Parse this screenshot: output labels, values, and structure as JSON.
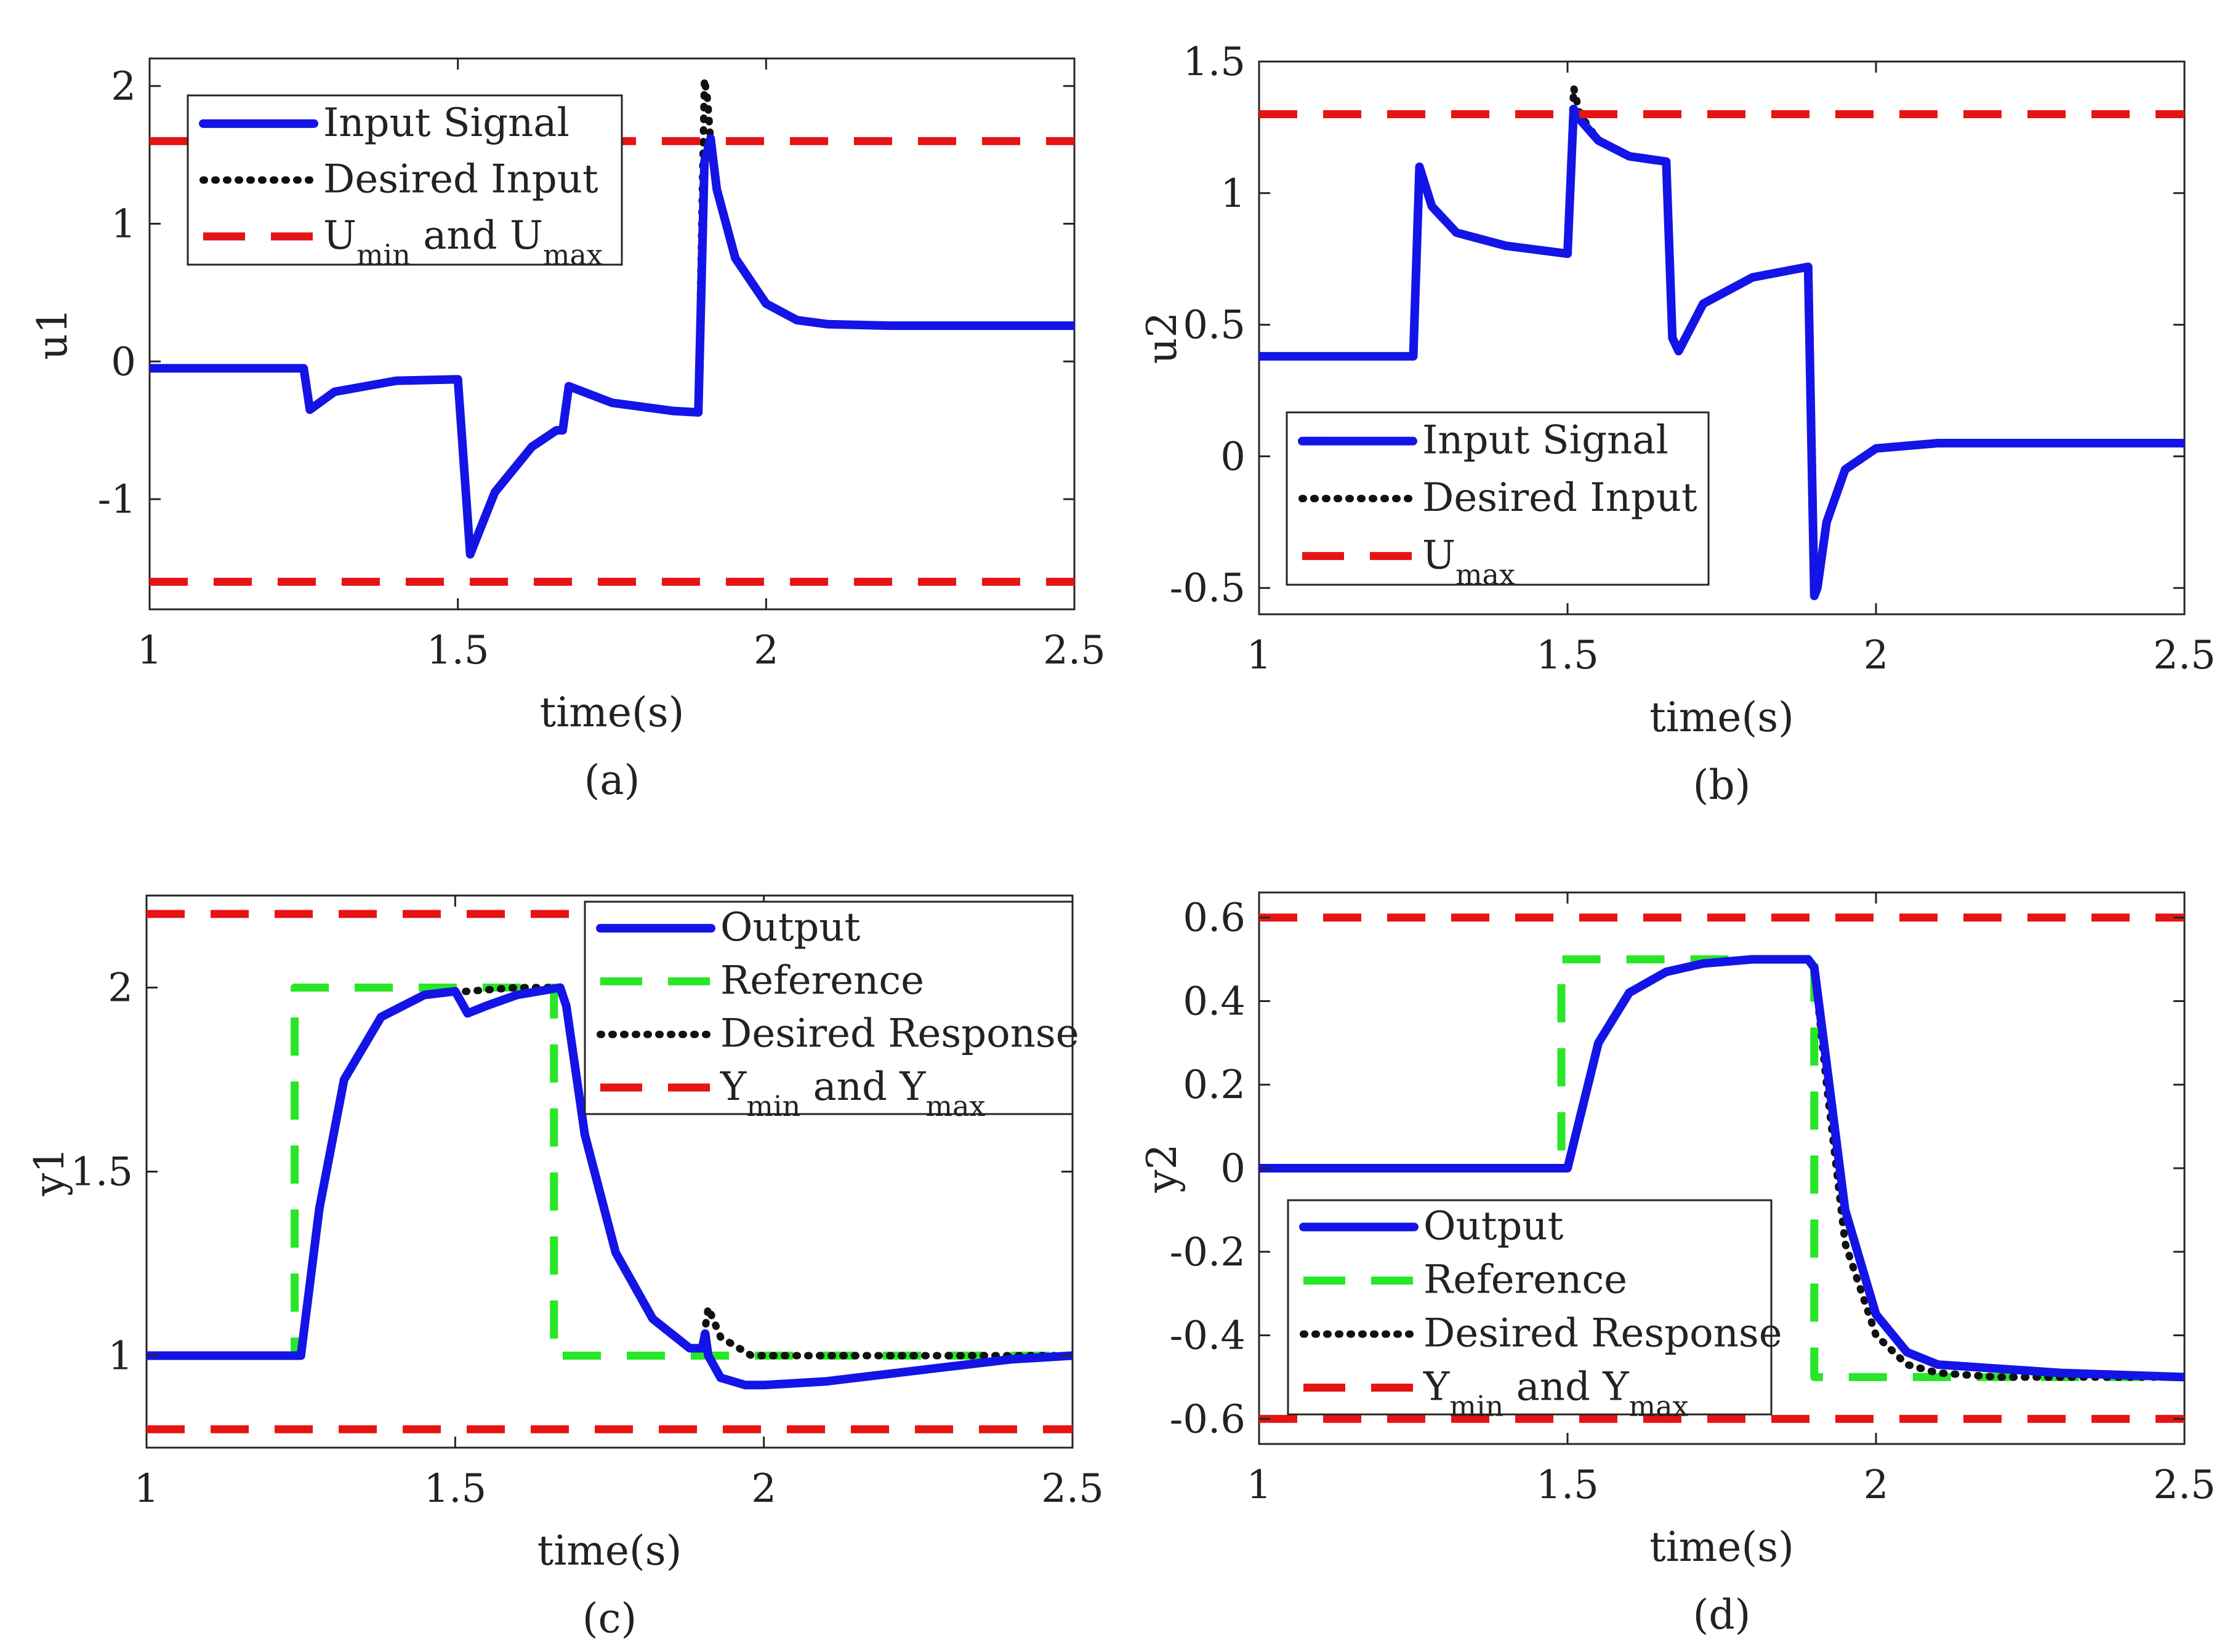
{
  "colors": {
    "input": "#1414e6",
    "desired": "#111111",
    "limit": "#e61414",
    "reference": "#28e628"
  },
  "chart_data": [
    {
      "id": "a",
      "type": "line",
      "caption": "(a)",
      "xlabel": "time(s)",
      "ylabel": "u1",
      "xlim": [
        1,
        2.5
      ],
      "ylim": [
        -1.8,
        2.2
      ],
      "xticks": [
        "1",
        "1.5",
        "2",
        "2.5"
      ],
      "yticks": [
        "-1",
        "0",
        "1",
        "2"
      ],
      "legend": {
        "position": "top-left",
        "entries": [
          {
            "name": "Input Signal",
            "style": "solid",
            "color": "input"
          },
          {
            "name": "Desired Input",
            "style": "dotted",
            "color": "desired"
          },
          {
            "name": "U",
            "sub": "min",
            "mid": " and U",
            "sub2": "max",
            "style": "dashed",
            "color": "limit"
          }
        ]
      },
      "series": [
        {
          "name": "Desired Input",
          "style": "dotted",
          "color": "desired",
          "x": [
            1,
            1.25,
            1.25,
            1.26,
            1.3,
            1.4,
            1.5,
            1.5,
            1.52,
            1.56,
            1.62,
            1.66,
            1.67,
            1.68,
            1.75,
            1.85,
            1.89,
            1.9,
            1.905,
            1.91,
            1.92,
            1.95,
            2.0,
            2.05,
            2.1,
            2.2,
            2.5
          ],
          "y": [
            -0.05,
            -0.05,
            -0.05,
            -0.35,
            -0.22,
            -0.14,
            -0.13,
            -0.13,
            -1.4,
            -0.95,
            -0.62,
            -0.5,
            -0.5,
            -0.18,
            -0.3,
            -0.36,
            -0.37,
            2.05,
            1.9,
            1.6,
            1.25,
            0.75,
            0.42,
            0.3,
            0.27,
            0.26,
            0.26
          ]
        },
        {
          "name": "Input Signal",
          "style": "solid",
          "color": "input",
          "x": [
            1,
            1.25,
            1.25,
            1.26,
            1.3,
            1.4,
            1.5,
            1.5,
            1.52,
            1.56,
            1.62,
            1.66,
            1.67,
            1.68,
            1.75,
            1.85,
            1.89,
            1.9,
            1.91,
            1.92,
            1.95,
            2.0,
            2.05,
            2.1,
            2.2,
            2.5
          ],
          "y": [
            -0.05,
            -0.05,
            -0.05,
            -0.35,
            -0.22,
            -0.14,
            -0.13,
            -0.13,
            -1.4,
            -0.95,
            -0.62,
            -0.5,
            -0.5,
            -0.18,
            -0.3,
            -0.36,
            -0.37,
            1.45,
            1.62,
            1.25,
            0.75,
            0.42,
            0.3,
            0.27,
            0.26,
            0.26
          ]
        },
        {
          "name": "U max",
          "style": "dashed",
          "color": "limit",
          "x": [
            1,
            2.5
          ],
          "y": [
            1.6,
            1.6
          ]
        },
        {
          "name": "U min",
          "style": "dashed",
          "color": "limit",
          "x": [
            1,
            2.5
          ],
          "y": [
            -1.6,
            -1.6
          ]
        }
      ]
    },
    {
      "id": "b",
      "type": "line",
      "caption": "(b)",
      "xlabel": "time(s)",
      "ylabel": "u2",
      "xlim": [
        1,
        2.5
      ],
      "ylim": [
        -0.6,
        1.5
      ],
      "xticks": [
        "1",
        "1.5",
        "2",
        "2.5"
      ],
      "yticks": [
        "-0.5",
        "0",
        "0.5",
        "1",
        "1.5"
      ],
      "legend": {
        "position": "bottom-left",
        "entries": [
          {
            "name": "Input Signal",
            "style": "solid",
            "color": "input"
          },
          {
            "name": "Desired Input",
            "style": "dotted",
            "color": "desired"
          },
          {
            "name": "U",
            "sub": "max",
            "style": "dashed",
            "color": "limit"
          }
        ]
      },
      "series": [
        {
          "name": "Desired Input",
          "style": "dotted",
          "color": "desired",
          "x": [
            1,
            1.25,
            1.26,
            1.28,
            1.32,
            1.4,
            1.5,
            1.5,
            1.51,
            1.52,
            1.55,
            1.6,
            1.66,
            1.67,
            1.68,
            1.72,
            1.8,
            1.89,
            1.9,
            1.905,
            1.92,
            1.95,
            2.0,
            2.1,
            2.5
          ],
          "y": [
            0.38,
            0.38,
            1.1,
            0.95,
            0.85,
            0.8,
            0.77,
            0.77,
            1.4,
            1.3,
            1.2,
            1.14,
            1.12,
            0.45,
            0.4,
            0.58,
            0.68,
            0.72,
            -0.53,
            -0.5,
            -0.25,
            -0.05,
            0.03,
            0.05,
            0.05
          ]
        },
        {
          "name": "Input Signal",
          "style": "solid",
          "color": "input",
          "x": [
            1,
            1.25,
            1.26,
            1.28,
            1.32,
            1.4,
            1.5,
            1.5,
            1.51,
            1.52,
            1.55,
            1.6,
            1.66,
            1.67,
            1.68,
            1.72,
            1.8,
            1.89,
            1.9,
            1.905,
            1.92,
            1.95,
            2.0,
            2.1,
            2.5
          ],
          "y": [
            0.38,
            0.38,
            1.1,
            0.95,
            0.85,
            0.8,
            0.77,
            0.77,
            1.32,
            1.28,
            1.2,
            1.14,
            1.12,
            0.45,
            0.4,
            0.58,
            0.68,
            0.72,
            -0.53,
            -0.5,
            -0.25,
            -0.05,
            0.03,
            0.05,
            0.05
          ]
        },
        {
          "name": "U max",
          "style": "dashed",
          "color": "limit",
          "x": [
            1,
            2.5
          ],
          "y": [
            1.3,
            1.3
          ]
        }
      ]
    },
    {
      "id": "c",
      "type": "line",
      "caption": "(c)",
      "xlabel": "time(s)",
      "ylabel": "y1",
      "xlim": [
        1,
        2.5
      ],
      "ylim": [
        0.75,
        2.25
      ],
      "xticks": [
        "1",
        "1.5",
        "2",
        "2.5"
      ],
      "yticks": [
        "1",
        "1.5",
        "2"
      ],
      "legend": {
        "position": "top-right",
        "entries": [
          {
            "name": "Output",
            "style": "solid",
            "color": "input"
          },
          {
            "name": "Reference",
            "style": "dashed",
            "color": "reference"
          },
          {
            "name": "Desired Response",
            "style": "dotted",
            "color": "desired"
          },
          {
            "name": "Y",
            "sub": "min",
            "mid": " and Y",
            "sub2": "max",
            "style": "dashed",
            "color": "limit"
          }
        ]
      },
      "series": [
        {
          "name": "Reference",
          "style": "dashed",
          "color": "reference",
          "x": [
            1,
            1.24,
            1.24,
            1.66,
            1.66,
            2.5
          ],
          "y": [
            1,
            1,
            2,
            2,
            1,
            1
          ]
        },
        {
          "name": "Desired Response",
          "style": "dotted",
          "color": "desired",
          "x": [
            1,
            1.25,
            1.28,
            1.32,
            1.38,
            1.45,
            1.52,
            1.6,
            1.67,
            1.68,
            1.71,
            1.76,
            1.82,
            1.88,
            1.9,
            1.91,
            1.93,
            1.98,
            2.05,
            2.5
          ],
          "y": [
            1,
            1,
            1.4,
            1.75,
            1.92,
            1.98,
            1.99,
            2.0,
            2.0,
            1.95,
            1.6,
            1.28,
            1.1,
            1.02,
            1.02,
            1.13,
            1.05,
            1.0,
            1.0,
            1.0
          ]
        },
        {
          "name": "Output",
          "style": "solid",
          "color": "input",
          "x": [
            1,
            1.25,
            1.28,
            1.32,
            1.38,
            1.45,
            1.5,
            1.51,
            1.52,
            1.55,
            1.6,
            1.67,
            1.68,
            1.71,
            1.76,
            1.82,
            1.88,
            1.9,
            1.905,
            1.91,
            1.93,
            1.97,
            2.0,
            2.1,
            2.2,
            2.3,
            2.4,
            2.5
          ],
          "y": [
            1,
            1,
            1.4,
            1.75,
            1.92,
            1.98,
            1.99,
            1.96,
            1.93,
            1.95,
            1.98,
            2.0,
            1.95,
            1.6,
            1.28,
            1.1,
            1.02,
            1.02,
            1.06,
            1.0,
            0.94,
            0.92,
            0.92,
            0.93,
            0.95,
            0.97,
            0.99,
            1.0
          ]
        },
        {
          "name": "Y max",
          "style": "dashed",
          "color": "limit",
          "x": [
            1,
            2.5
          ],
          "y": [
            2.2,
            2.2
          ]
        },
        {
          "name": "Y min",
          "style": "dashed",
          "color": "limit",
          "x": [
            1,
            2.5
          ],
          "y": [
            0.8,
            0.8
          ]
        }
      ]
    },
    {
      "id": "d",
      "type": "line",
      "caption": "(d)",
      "xlabel": "time(s)",
      "ylabel": "y2",
      "xlim": [
        1,
        2.5
      ],
      "ylim": [
        -0.66,
        0.66
      ],
      "xticks": [
        "1",
        "1.5",
        "2",
        "2.5"
      ],
      "yticks": [
        "-0.6",
        "-0.4",
        "-0.2",
        "0",
        "0.2",
        "0.4",
        "0.6"
      ],
      "legend": {
        "position": "bottom-left",
        "entries": [
          {
            "name": "Output",
            "style": "solid",
            "color": "input"
          },
          {
            "name": "Reference",
            "style": "dashed",
            "color": "reference"
          },
          {
            "name": "Desired Response",
            "style": "dotted",
            "color": "desired"
          },
          {
            "name": "Y",
            "sub": "min",
            "mid": " and Y",
            "sub2": "max",
            "style": "dashed",
            "color": "limit"
          }
        ]
      },
      "series": [
        {
          "name": "Reference",
          "style": "dashed",
          "color": "reference",
          "x": [
            1,
            1.49,
            1.49,
            1.9,
            1.9,
            2.5
          ],
          "y": [
            0,
            0,
            0.5,
            0.5,
            -0.5,
            -0.5
          ]
        },
        {
          "name": "Desired Response",
          "style": "dotted",
          "color": "desired",
          "x": [
            1,
            1.5,
            1.52,
            1.55,
            1.6,
            1.66,
            1.72,
            1.8,
            1.89,
            1.9,
            1.92,
            1.95,
            2.0,
            2.05,
            2.1,
            2.2,
            2.5
          ],
          "y": [
            0,
            0,
            0.12,
            0.3,
            0.42,
            0.47,
            0.49,
            0.5,
            0.5,
            0.48,
            0.2,
            -0.18,
            -0.4,
            -0.47,
            -0.49,
            -0.5,
            -0.5
          ]
        },
        {
          "name": "Output",
          "style": "solid",
          "color": "input",
          "x": [
            1,
            1.5,
            1.52,
            1.55,
            1.6,
            1.66,
            1.72,
            1.8,
            1.89,
            1.9,
            1.92,
            1.95,
            2.0,
            2.05,
            2.1,
            2.2,
            2.3,
            2.5
          ],
          "y": [
            0,
            0,
            0.12,
            0.3,
            0.42,
            0.47,
            0.49,
            0.5,
            0.5,
            0.48,
            0.25,
            -0.1,
            -0.35,
            -0.44,
            -0.47,
            -0.48,
            -0.49,
            -0.5
          ]
        },
        {
          "name": "Y max",
          "style": "dashed",
          "color": "limit",
          "x": [
            1,
            2.5
          ],
          "y": [
            0.6,
            0.6
          ]
        },
        {
          "name": "Y min",
          "style": "dashed",
          "color": "limit",
          "x": [
            1,
            2.5
          ],
          "y": [
            -0.6,
            -0.6
          ]
        }
      ]
    }
  ]
}
